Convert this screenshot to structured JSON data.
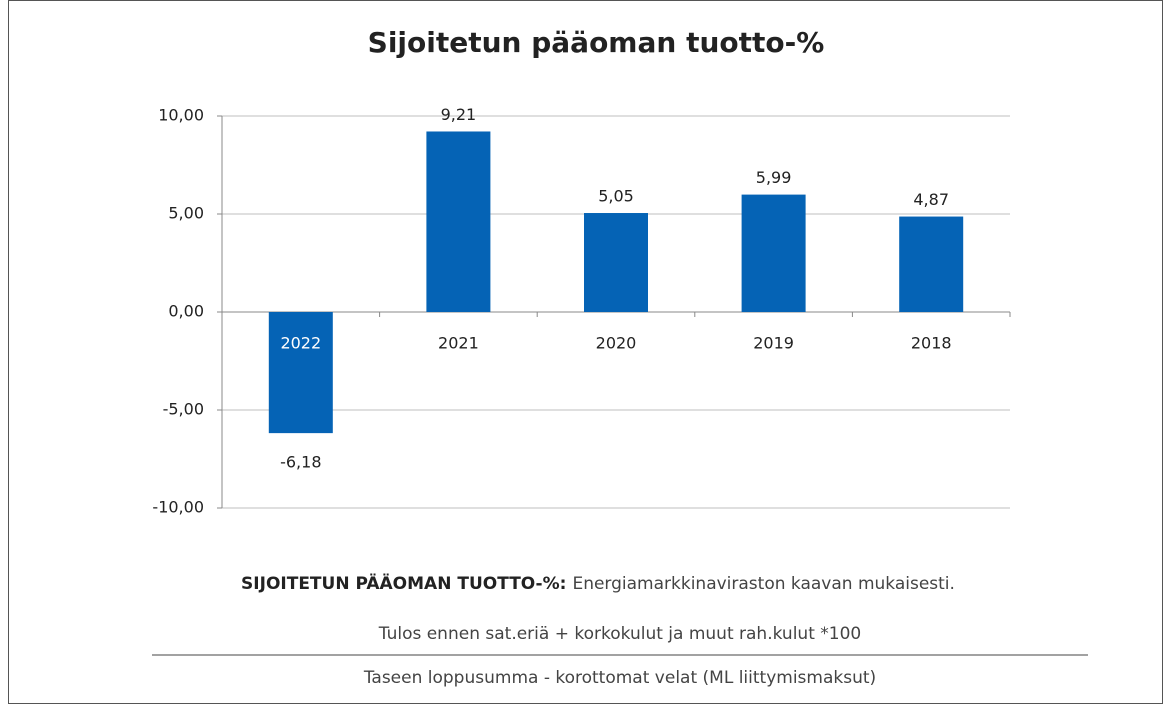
{
  "chart_data": {
    "type": "bar",
    "title": "Sijoitetun pääoman tuotto-%",
    "categories": [
      "2022",
      "2021",
      "2020",
      "2019",
      "2018"
    ],
    "values": [
      -6.18,
      9.21,
      5.05,
      5.99,
      4.87
    ],
    "value_labels": [
      "-6,18",
      "9,21",
      "5,05",
      "5,99",
      "4,87"
    ],
    "color": "#0563b5",
    "ylim": [
      -10,
      10
    ],
    "yticks": [
      {
        "value": -10,
        "label": "-10,00"
      },
      {
        "value": -5,
        "label": "-5,00"
      },
      {
        "value": 0,
        "label": "0,00"
      },
      {
        "value": 5,
        "label": "5,00"
      },
      {
        "value": 10,
        "label": "10,00"
      }
    ],
    "grid": true,
    "note_heading": "SIJOITETUN PÄÄOMAN TUOTTO-%:",
    "note_text": "Energiamarkkinaviraston kaavan mukaisesti.",
    "formula_numerator": "Tulos ennen sat.eriä + korkokulut ja muut rah.kulut *100",
    "formula_denominator": "Taseen loppusumma - korottomat velat (ML liittymismaksut)"
  }
}
